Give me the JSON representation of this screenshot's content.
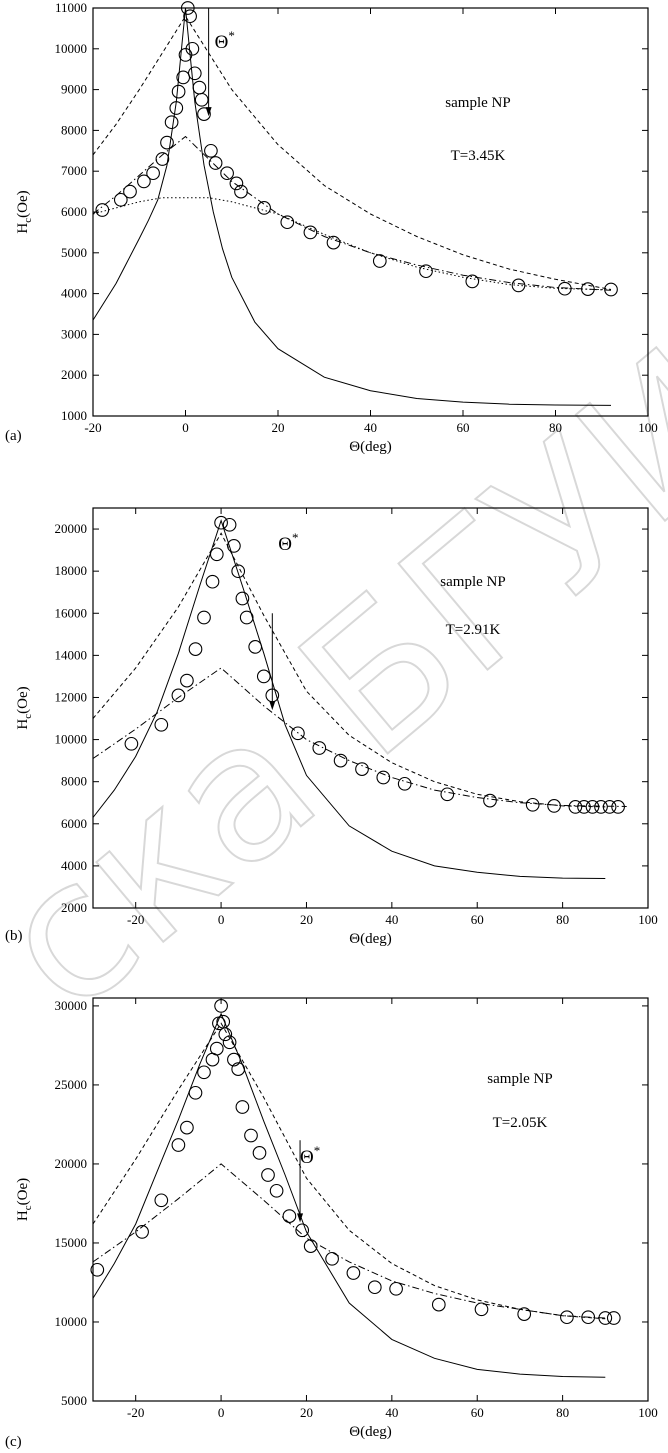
{
  "watermark": "ска БГУИР",
  "chart_data": [
    {
      "panel_tag": "(a)",
      "type": "scatter",
      "xlabel_symbol": "Θ",
      "xlabel_unit": "(deg)",
      "ylabel_symbol": "H",
      "ylabel_sub": "c",
      "ylabel_unit": "(Oe)",
      "annotations": [
        "sample NP",
        "T=3.45K"
      ],
      "marker_label": "Θ",
      "marker_sup": "*",
      "marker_x": 5,
      "marker_y_from": 11000,
      "marker_y_to": 8350,
      "xlim": [
        -20,
        100
      ],
      "ylim": [
        1000,
        11000
      ],
      "xticks": [
        -20,
        0,
        20,
        40,
        60,
        80,
        100
      ],
      "yticks": [
        1000,
        2000,
        3000,
        4000,
        5000,
        6000,
        7000,
        8000,
        9000,
        10000,
        11000
      ],
      "points": {
        "x": [
          -18,
          -14,
          -12,
          -9,
          -7,
          -5,
          -4,
          -3,
          -2,
          -1.5,
          -0.5,
          0,
          0.5,
          1,
          1.5,
          2,
          3,
          3.5,
          4,
          5.5,
          6.5,
          9,
          11,
          12,
          17,
          22,
          27,
          32,
          42,
          52,
          62,
          72,
          82,
          87,
          92
        ],
        "y": [
          6050,
          6300,
          6500,
          6750,
          6950,
          7300,
          7700,
          8200,
          8550,
          8950,
          9300,
          9850,
          11000,
          10800,
          10000,
          9400,
          9050,
          8750,
          8400,
          7500,
          7200,
          6950,
          6700,
          6500,
          6100,
          5750,
          5500,
          5250,
          4800,
          4550,
          4300,
          4200,
          4120,
          4110,
          4100
        ]
      },
      "curves": [
        {
          "style": "solid",
          "x": [
            -20,
            -15,
            -10,
            -8,
            -6,
            -4,
            -2,
            -1,
            0,
            1,
            2,
            4,
            6,
            8,
            10,
            15,
            20,
            30,
            40,
            50,
            60,
            70,
            80,
            92
          ],
          "y": [
            3350,
            4250,
            5350,
            5800,
            6300,
            7150,
            8700,
            9850,
            11000,
            9850,
            8700,
            7150,
            6000,
            5100,
            4400,
            3300,
            2650,
            1950,
            1620,
            1430,
            1340,
            1290,
            1270,
            1260
          ]
        },
        {
          "style": "dashed",
          "x": [
            -20,
            -15,
            -10,
            -5,
            0,
            5,
            10,
            20,
            30,
            40,
            50,
            60,
            70,
            80,
            92
          ],
          "y": [
            7400,
            8150,
            9000,
            9900,
            10800,
            9900,
            9000,
            7650,
            6650,
            5950,
            5400,
            4950,
            4600,
            4350,
            4100
          ]
        },
        {
          "style": "dashdot",
          "x": [
            -20,
            -15,
            -10,
            -5,
            0,
            5,
            10,
            20,
            30,
            40,
            50,
            60,
            70,
            80,
            92
          ],
          "y": [
            5950,
            6400,
            6900,
            7400,
            7850,
            7300,
            6750,
            5950,
            5400,
            5000,
            4700,
            4450,
            4270,
            4150,
            4080
          ]
        },
        {
          "style": "dotted",
          "x": [
            -20,
            -15,
            -10,
            -5,
            5,
            10,
            20,
            30,
            40,
            50,
            60,
            70,
            80,
            92
          ],
          "y": [
            5950,
            6100,
            6250,
            6350,
            6350,
            6250,
            5950,
            5450,
            5000,
            4650,
            4400,
            4220,
            4130,
            4090
          ]
        }
      ]
    },
    {
      "panel_tag": "(b)",
      "type": "scatter",
      "xlabel_symbol": "Θ",
      "xlabel_unit": "(deg)",
      "ylabel_symbol": "H",
      "ylabel_sub": "c",
      "ylabel_unit": "(Oe)",
      "annotations": [
        "sample NP",
        "T=2.91K"
      ],
      "marker_label": "Θ",
      "marker_sup": "*",
      "marker_x": 12,
      "marker_y_from": 16000,
      "marker_y_to": 11400,
      "xlim": [
        -30,
        100
      ],
      "ylim": [
        2000,
        21000
      ],
      "xticks": [
        -20,
        0,
        20,
        40,
        60,
        80,
        100
      ],
      "yticks": [
        2000,
        4000,
        6000,
        8000,
        10000,
        12000,
        14000,
        16000,
        18000,
        20000
      ],
      "points": {
        "x": [
          -21,
          -14,
          -10,
          -8,
          -6,
          -4,
          -2,
          -1,
          0,
          2,
          3,
          4,
          5,
          6,
          8,
          10,
          12,
          18,
          23,
          28,
          33,
          38,
          43,
          53,
          63,
          73,
          78,
          83,
          85,
          87,
          89,
          91,
          93
        ],
        "y": [
          9800,
          10700,
          12100,
          12800,
          14300,
          15800,
          17500,
          18800,
          20300,
          20200,
          19200,
          18000,
          16700,
          15800,
          14400,
          13000,
          12100,
          10300,
          9600,
          9000,
          8600,
          8200,
          7900,
          7400,
          7100,
          6900,
          6850,
          6800,
          6800,
          6800,
          6800,
          6800,
          6800
        ]
      },
      "curves": [
        {
          "style": "solid",
          "x": [
            -30,
            -25,
            -20,
            -15,
            -10,
            -5,
            0,
            5,
            10,
            15,
            20,
            30,
            40,
            50,
            60,
            70,
            80,
            90
          ],
          "y": [
            6300,
            7600,
            9200,
            11300,
            14100,
            17300,
            20400,
            17300,
            14100,
            10700,
            8300,
            5900,
            4700,
            4000,
            3700,
            3500,
            3420,
            3400
          ]
        },
        {
          "style": "dashed",
          "x": [
            -30,
            -20,
            -10,
            0,
            10,
            20,
            30,
            40,
            50,
            60,
            70,
            80,
            90
          ],
          "y": [
            11000,
            13400,
            16300,
            19800,
            15900,
            12300,
            10200,
            8900,
            8000,
            7400,
            7050,
            6850,
            6800
          ]
        },
        {
          "style": "dashdot",
          "x": [
            -30,
            -20,
            -10,
            0,
            10,
            20,
            30,
            40,
            50,
            60,
            70,
            80,
            95
          ],
          "y": [
            9100,
            10500,
            12000,
            13400,
            11600,
            10000,
            9000,
            8200,
            7600,
            7250,
            7000,
            6870,
            6820
          ]
        }
      ]
    },
    {
      "panel_tag": "(c)",
      "type": "scatter",
      "xlabel_symbol": "Θ",
      "xlabel_unit": "(deg)",
      "ylabel_symbol": "H",
      "ylabel_sub": "c",
      "ylabel_unit": "(Oe)",
      "annotations": [
        "sample NP",
        "T=2.05K"
      ],
      "marker_label": "Θ",
      "marker_sup": "*",
      "marker_x": 18.5,
      "marker_y_from": 21500,
      "marker_y_to": 16300,
      "xlim": [
        -30,
        100
      ],
      "ylim": [
        5000,
        30500
      ],
      "xticks": [
        -20,
        0,
        20,
        40,
        60,
        80,
        100
      ],
      "yticks": [
        5000,
        10000,
        15000,
        20000,
        25000,
        30000
      ],
      "points": {
        "x": [
          -29,
          -18.5,
          -14,
          -10,
          -8,
          -6,
          -4,
          -2,
          -1,
          -0.5,
          0,
          0.5,
          1,
          2,
          3,
          4,
          5,
          7,
          9,
          11,
          13,
          16,
          19,
          21,
          26,
          31,
          36,
          41,
          51,
          61,
          71,
          81,
          86,
          90,
          92
        ],
        "y": [
          13300,
          15700,
          17700,
          21200,
          22300,
          24500,
          25800,
          26600,
          27300,
          28900,
          30000,
          29000,
          28200,
          27700,
          26600,
          26000,
          23600,
          21800,
          20700,
          19300,
          18300,
          16700,
          15800,
          14800,
          14000,
          13100,
          12200,
          12100,
          11100,
          10800,
          10500,
          10300,
          10300,
          10250,
          10250
        ]
      },
      "curves": [
        {
          "style": "solid",
          "x": [
            -30,
            -25,
            -20,
            -15,
            -10,
            -5,
            0,
            5,
            10,
            15,
            20,
            30,
            40,
            50,
            60,
            70,
            80,
            90
          ],
          "y": [
            11500,
            13700,
            16200,
            19500,
            22800,
            26300,
            29500,
            26300,
            22700,
            19300,
            15700,
            11200,
            8900,
            7700,
            7000,
            6700,
            6550,
            6500
          ]
        },
        {
          "style": "dashed",
          "x": [
            -30,
            -20,
            -10,
            0,
            10,
            20,
            30,
            40,
            50,
            60,
            70,
            80,
            90
          ],
          "y": [
            16200,
            20300,
            24700,
            28900,
            24200,
            19100,
            15800,
            13700,
            12300,
            11400,
            10800,
            10400,
            10200
          ]
        },
        {
          "style": "dashdot",
          "x": [
            -30,
            -20,
            -10,
            0,
            10,
            20,
            30,
            40,
            50,
            60,
            70,
            80,
            90
          ],
          "y": [
            13800,
            15700,
            17800,
            20000,
            17700,
            15300,
            13800,
            12600,
            11800,
            11200,
            10800,
            10400,
            10250
          ]
        }
      ]
    }
  ]
}
